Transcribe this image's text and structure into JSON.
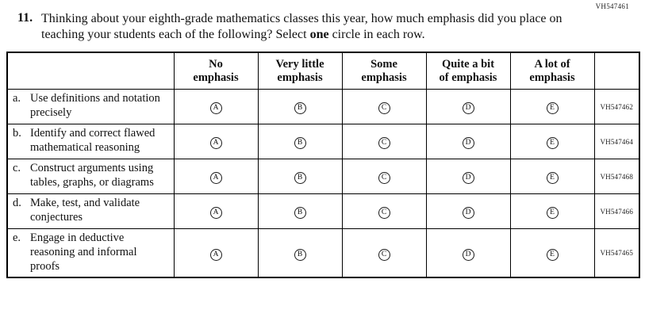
{
  "page": {
    "top_code": "VH547461"
  },
  "question": {
    "number": "11.",
    "text_before_bold": "Thinking about your eighth-grade mathematics classes this year, how much emphasis did you place on teaching your students each of the following? Select ",
    "bold_word": "one",
    "text_after_bold": " circle in each row."
  },
  "table": {
    "headers": [
      {
        "line1": "No",
        "line2": "emphasis"
      },
      {
        "line1": "Very little",
        "line2": "emphasis"
      },
      {
        "line1": "Some",
        "line2": "emphasis"
      },
      {
        "line1": "Quite a bit",
        "line2": "of emphasis"
      },
      {
        "line1": "A lot of",
        "line2": "emphasis"
      }
    ],
    "option_letters": [
      "A",
      "B",
      "C",
      "D",
      "E"
    ],
    "rows": [
      {
        "letter": "a.",
        "label": "Use definitions and notation precisely",
        "code": "VH547462"
      },
      {
        "letter": "b.",
        "label": "Identify and correct flawed mathematical reasoning",
        "code": "VH547464"
      },
      {
        "letter": "c.",
        "label": "Construct arguments using tables, graphs, or diagrams",
        "code": "VH547468"
      },
      {
        "letter": "d.",
        "label": "Make, test, and validate conjectures",
        "code": "VH547466"
      },
      {
        "letter": "e.",
        "label": "Engage in deductive reasoning and informal proofs",
        "code": "VH547465"
      }
    ]
  }
}
